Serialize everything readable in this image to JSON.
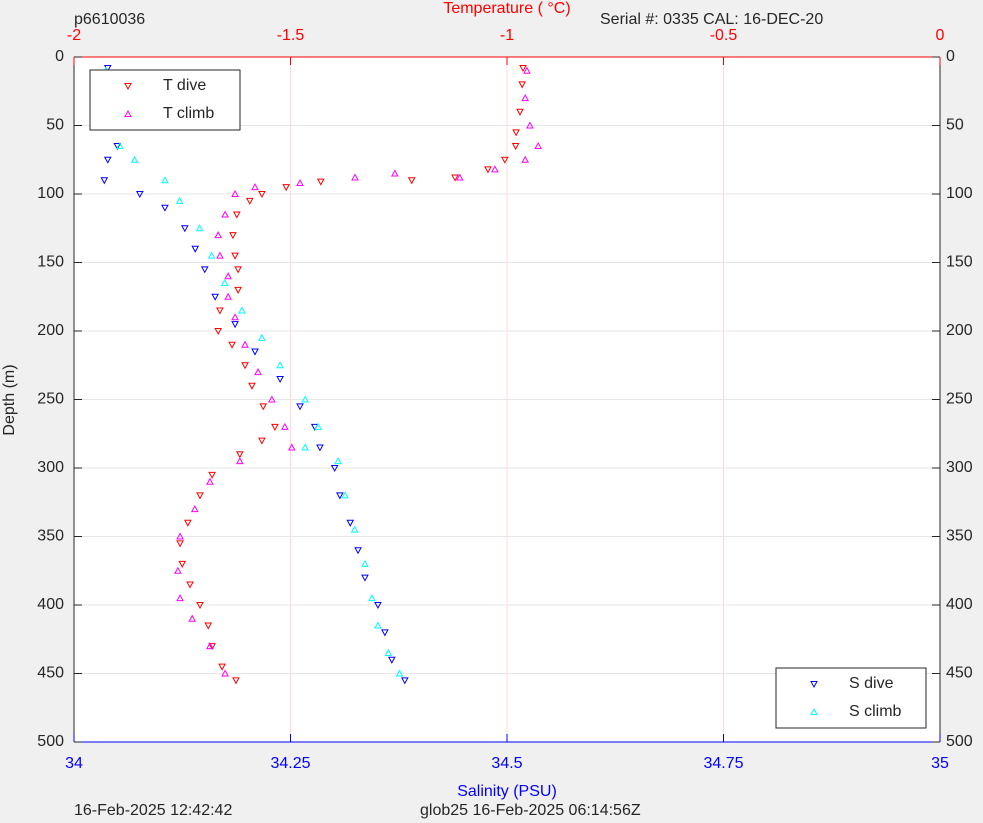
{
  "chart_data": {
    "type": "scatter",
    "title": "p6610036",
    "subtitle": "Serial #: 0335  CAL: 16-DEC-20",
    "x2_label": "Temperature (   °C)",
    "x_label": "Salinity (PSU)",
    "y_label": "Depth (m)",
    "footer_left": "16-Feb-2025 12:42:42",
    "footer_right": "glob25 16-Feb-2025 06:14:56Z",
    "ylim": [
      0,
      500
    ],
    "y_reversed": true,
    "yticks": [
      0,
      50,
      100,
      150,
      200,
      250,
      300,
      350,
      400,
      450,
      500
    ],
    "xlim": [
      34,
      35
    ],
    "xticks": [
      34,
      34.25,
      34.5,
      34.75,
      35
    ],
    "x_color": "#0000ff",
    "x2lim": [
      -2,
      0
    ],
    "x2ticks": [
      -2,
      -1.5,
      -1,
      -0.5,
      0
    ],
    "x2_color": "#ff0000",
    "grid": true,
    "series": [
      {
        "name": "T dive",
        "color": "#ff0000",
        "marker": "v",
        "axis": "x2",
        "legend": "upper left",
        "x": [
          -0.963,
          -0.965,
          -0.97,
          -0.979,
          -0.98,
          -1.005,
          -1.044,
          -1.12,
          -1.22,
          -1.43,
          -1.51,
          -1.566,
          -1.594,
          -1.624,
          -1.633,
          -1.628,
          -1.621,
          -1.621,
          -1.663,
          -1.667,
          -1.635,
          -1.605,
          -1.589,
          -1.563,
          -1.536,
          -1.566,
          -1.617,
          -1.681,
          -1.709,
          -1.737,
          -1.755,
          -1.75,
          -1.732,
          -1.709,
          -1.69,
          -1.681,
          -1.658,
          -1.626
        ],
        "values": [
          8,
          20,
          40,
          55,
          65,
          75,
          82,
          88,
          90,
          91,
          95,
          100,
          105,
          115,
          130,
          145,
          155,
          170,
          185,
          200,
          210,
          225,
          240,
          255,
          270,
          280,
          290,
          305,
          320,
          340,
          355,
          370,
          385,
          400,
          415,
          430,
          445,
          455
        ]
      },
      {
        "name": "T climb",
        "color": "#ff00ff",
        "marker": "^",
        "axis": "x2",
        "legend": "upper left",
        "x": [
          -0.954,
          -0.958,
          -0.947,
          -0.928,
          -0.958,
          -1.028,
          -1.109,
          -1.259,
          -1.351,
          -1.478,
          -1.582,
          -1.628,
          -1.651,
          -1.667,
          -1.663,
          -1.644,
          -1.644,
          -1.628,
          -1.605,
          -1.575,
          -1.543,
          -1.513,
          -1.497,
          -1.617,
          -1.686,
          -1.721,
          -1.755,
          -1.76,
          -1.755,
          -1.727,
          -1.686,
          -1.651
        ],
        "values": [
          10,
          30,
          50,
          65,
          75,
          82,
          88,
          85,
          88,
          92,
          95,
          100,
          115,
          130,
          145,
          160,
          175,
          190,
          210,
          230,
          250,
          270,
          285,
          295,
          310,
          330,
          350,
          375,
          395,
          410,
          430,
          450
        ]
      },
      {
        "name": "S dive",
        "color": "#0000ff",
        "marker": "v",
        "axis": "x",
        "legend": "lower right",
        "x": [
          34.039,
          34.045,
          34.048,
          34.05,
          34.039,
          34.035,
          34.076,
          34.105,
          34.128,
          34.14,
          34.151,
          34.163,
          34.186,
          34.209,
          34.238,
          34.261,
          34.278,
          34.284,
          34.301,
          34.307,
          34.319,
          34.328,
          34.336,
          34.351,
          34.359,
          34.367,
          34.382
        ],
        "values": [
          8,
          30,
          50,
          65,
          75,
          90,
          100,
          110,
          125,
          140,
          155,
          175,
          195,
          215,
          235,
          255,
          270,
          285,
          300,
          320,
          340,
          360,
          380,
          400,
          420,
          440,
          455
        ]
      },
      {
        "name": "S climb",
        "color": "#00ffff",
        "marker": "^",
        "axis": "x",
        "legend": "lower right",
        "x": [
          34.037,
          34.039,
          34.045,
          34.053,
          34.07,
          34.105,
          34.122,
          34.145,
          34.159,
          34.174,
          34.194,
          34.217,
          34.238,
          34.267,
          34.282,
          34.267,
          34.305,
          34.313,
          34.324,
          34.336,
          34.344,
          34.351,
          34.363,
          34.376
        ],
        "values": [
          10,
          30,
          50,
          65,
          75,
          90,
          105,
          125,
          145,
          165,
          185,
          205,
          225,
          250,
          270,
          285,
          295,
          320,
          345,
          370,
          395,
          415,
          435,
          450
        ]
      }
    ]
  }
}
